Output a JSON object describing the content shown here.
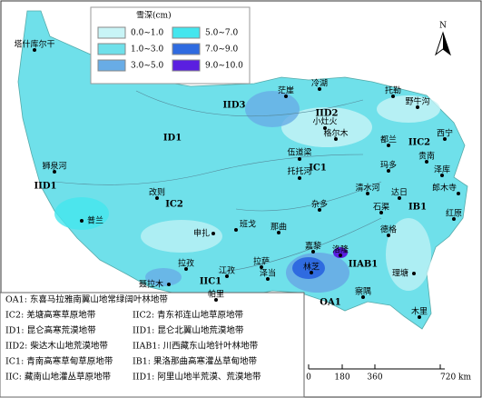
{
  "legend": {
    "title": "雪深(cm)",
    "items": [
      {
        "label": "0.0~1.0",
        "color": "#c8f4f6"
      },
      {
        "label": "1.0~3.0",
        "color": "#6fe0ea"
      },
      {
        "label": "3.0~5.0",
        "color": "#68ace6"
      },
      {
        "label": "5.0~7.0",
        "color": "#44e6ee"
      },
      {
        "label": "7.0~9.0",
        "color": "#2f6be0"
      },
      {
        "label": "9.0~10.0",
        "color": "#5a1fe0"
      }
    ]
  },
  "north": "N",
  "places": [
    "塔什库尔干",
    "茫崖",
    "冷湖",
    "托勒",
    "野牛沟",
    "小灶火",
    "格尔木",
    "都兰",
    "西宁",
    "伍道梁",
    "托托河",
    "贵南",
    "玛多",
    "泽库",
    "狮泉河",
    "清水河",
    "达日",
    "郎木寺",
    "改则",
    "杂多",
    "石渠",
    "红原",
    "普兰",
    "申扎",
    "班戈",
    "那曲",
    "德格",
    "嘉黎",
    "洛隆",
    "拉孜",
    "拉萨",
    "江孜",
    "泽当",
    "林芝",
    "理塘",
    "聂拉木",
    "帕里",
    "察隅",
    "木里"
  ],
  "zones": [
    "IID3",
    "IID2",
    "ID1",
    "IC1",
    "IIC2",
    "IID1",
    "IC2",
    "IB1",
    "IIAB1",
    "IIC1",
    "OA1"
  ],
  "notes": [
    "OA1: 东喜马拉雅南翼山地常绿阔叶林地带",
    "IC2: 羌塘高寒草原地带",
    "IIC2: 青东祁连山地草原地带",
    "ID1: 昆仑高寒荒漠地带",
    "IID1: 昆仑北翼山地荒漠地带",
    "IID2: 柴达木山地荒漠地带",
    "IIAB1: 川西藏东山地针叶林地带",
    "IC1: 青南高寒草甸草原地带",
    "IB1: 果洛那曲高寒灌丛草甸地带",
    "IIC: 藏南山地灌丛草原地带",
    "IID1: 阿里山地半荒漠、荒漠地带"
  ],
  "scale": [
    "0",
    "180",
    "360",
    "720 km"
  ]
}
